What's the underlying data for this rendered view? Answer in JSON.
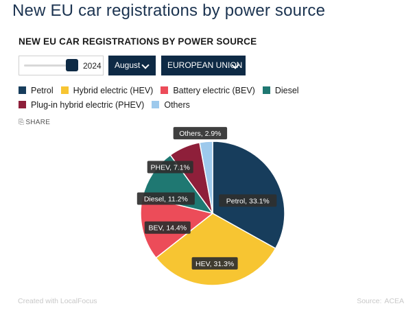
{
  "page_title": "New EU car registrations by power source",
  "controls": {
    "year": "2024",
    "year_fraction": 0.95,
    "month": "August",
    "region": "EUROPEAN UNION"
  },
  "share_label": "SHARE",
  "footer": {
    "created_with": "Created with LocalFocus",
    "source_label": "Source:",
    "source_value": "ACEA"
  },
  "chart_data": {
    "type": "pie",
    "title": "NEW EU CAR REGISTRATIONS BY POWER SOURCE",
    "legend_placement": "top",
    "unit": "%",
    "slices": [
      {
        "name": "Petrol",
        "label": "Petrol",
        "value": 33.1,
        "color": "#173d5c"
      },
      {
        "name": "Hybrid electric (HEV)",
        "label": "HEV",
        "value": 31.3,
        "color": "#f7c532"
      },
      {
        "name": "Battery electric (BEV)",
        "label": "BEV",
        "value": 14.4,
        "color": "#ec4c59"
      },
      {
        "name": "Diesel",
        "label": "Diesel",
        "value": 11.2,
        "color": "#1f7872"
      },
      {
        "name": "Plug-in hybrid electric (PHEV)",
        "label": "PHEV",
        "value": 7.1,
        "color": "#8e1f3a"
      },
      {
        "name": "Others",
        "label": "Others",
        "value": 2.9,
        "color": "#9dc9ec"
      }
    ]
  }
}
